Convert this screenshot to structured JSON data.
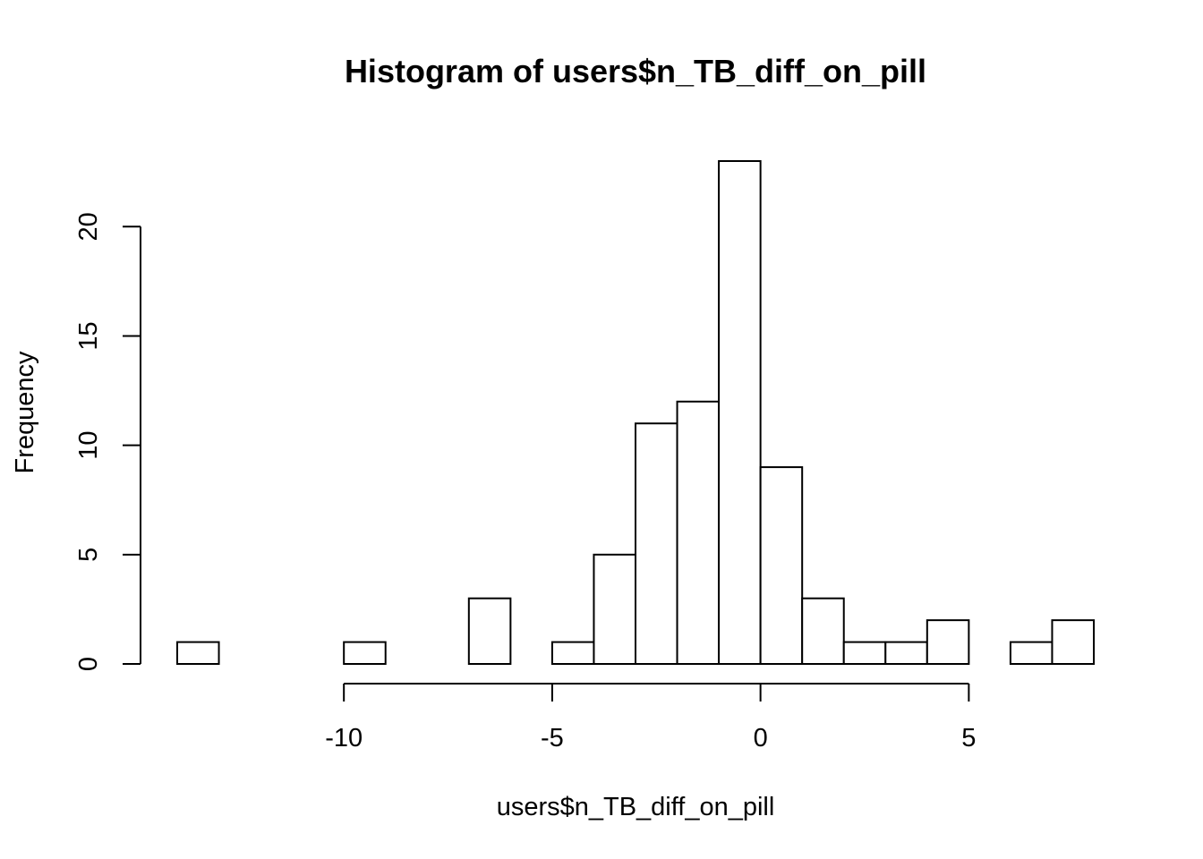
{
  "chart_data": {
    "type": "bar",
    "subtype": "histogram",
    "title": "Histogram of users$n_TB_diff_on_pill",
    "xlabel": "users$n_TB_diff_on_pill",
    "ylabel": "Frequency",
    "bins": [
      {
        "x0": -14,
        "x1": -13,
        "count": 1
      },
      {
        "x0": -13,
        "x1": -12,
        "count": 0
      },
      {
        "x0": -12,
        "x1": -11,
        "count": 0
      },
      {
        "x0": -11,
        "x1": -10,
        "count": 0
      },
      {
        "x0": -10,
        "x1": -9,
        "count": 1
      },
      {
        "x0": -9,
        "x1": -8,
        "count": 0
      },
      {
        "x0": -8,
        "x1": -7,
        "count": 0
      },
      {
        "x0": -7,
        "x1": -6,
        "count": 3
      },
      {
        "x0": -6,
        "x1": -5,
        "count": 0
      },
      {
        "x0": -5,
        "x1": -4,
        "count": 1
      },
      {
        "x0": -4,
        "x1": -3,
        "count": 5
      },
      {
        "x0": -3,
        "x1": -2,
        "count": 11
      },
      {
        "x0": -2,
        "x1": -1,
        "count": 12
      },
      {
        "x0": -1,
        "x1": 0,
        "count": 23
      },
      {
        "x0": 0,
        "x1": 1,
        "count": 9
      },
      {
        "x0": 1,
        "x1": 2,
        "count": 3
      },
      {
        "x0": 2,
        "x1": 3,
        "count": 1
      },
      {
        "x0": 3,
        "x1": 4,
        "count": 1
      },
      {
        "x0": 4,
        "x1": 5,
        "count": 2
      },
      {
        "x0": 5,
        "x1": 6,
        "count": 0
      },
      {
        "x0": 6,
        "x1": 7,
        "count": 1
      },
      {
        "x0": 7,
        "x1": 8,
        "count": 2
      }
    ],
    "xticks": [
      -10,
      -5,
      0,
      5
    ],
    "xtick_labels": [
      "-10",
      "-5",
      "0",
      "5"
    ],
    "yticks": [
      0,
      5,
      10,
      15,
      20
    ],
    "ytick_labels": [
      "0",
      "5",
      "10",
      "15",
      "20"
    ],
    "xlim": [
      -14,
      8
    ],
    "ylim": [
      0,
      23
    ],
    "grid": false,
    "colors": {
      "bar_fill": "#ffffff",
      "bar_stroke": "#000000",
      "background": "#ffffff"
    }
  }
}
